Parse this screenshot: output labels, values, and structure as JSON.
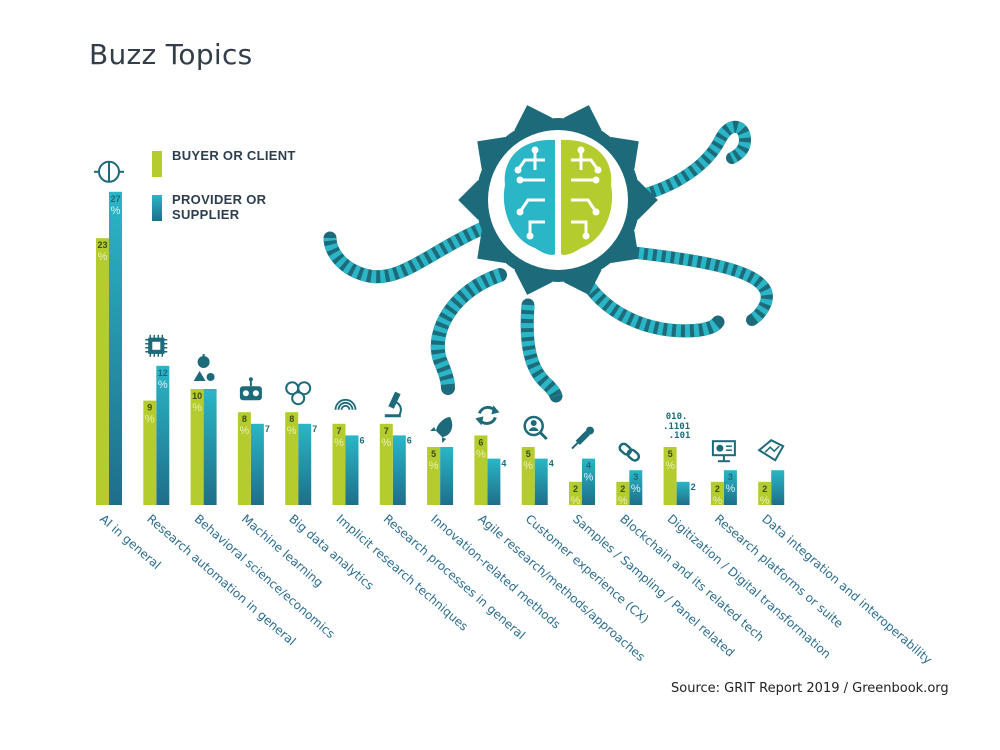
{
  "title": "Buzz Topics",
  "source": "Source: GRIT Report 2019 / Greenbook.org",
  "colors": {
    "buyer": "#b5cc2e",
    "provider": "#2ab6c6",
    "provider_dark": "#1f6e8a",
    "label": "#2a6c8f",
    "graphic": "#1d6b7a"
  },
  "legend": [
    {
      "label": "BUYER OR CLIENT",
      "series": "buyer"
    },
    {
      "label": "PROVIDER OR SUPPLIER",
      "series": "provider"
    }
  ],
  "chart_data": {
    "type": "bar",
    "title": "Buzz Topics",
    "ylim": [
      0,
      28
    ],
    "categories": [
      "AI in general",
      "Research automation in general",
      "Behavioral science/economics",
      "Machine learning",
      "Big data analytics",
      "Implicit research techniques",
      "Research processes in general",
      "Innovation-related methods",
      "Agile research/methods/approaches",
      "Customer experience (CX)",
      "Samples / Sampling / Panel related",
      "Blockchain and its related tech",
      "Digitization / Digital transformation",
      "Research platforms or suite",
      "Data integration and interoperability"
    ],
    "series": [
      {
        "name": "BUYER OR CLIENT",
        "values": [
          23,
          9,
          10,
          8,
          8,
          7,
          7,
          5,
          6,
          5,
          2,
          2,
          5,
          2,
          2
        ]
      },
      {
        "name": "PROVIDER OR SUPPLIER",
        "values": [
          27,
          12,
          10,
          7,
          7,
          6,
          6,
          5,
          4,
          4,
          4,
          3,
          2,
          3,
          3
        ]
      }
    ],
    "value_labels": [
      [
        "23",
        "27"
      ],
      [
        "9",
        "12"
      ],
      [
        "10",
        ""
      ],
      [
        "8",
        "7"
      ],
      [
        "8",
        "7"
      ],
      [
        "7",
        "6"
      ],
      [
        "7",
        "6"
      ],
      [
        "5",
        ""
      ],
      [
        "6",
        "4"
      ],
      [
        "5",
        "4"
      ],
      [
        "2",
        "4"
      ],
      [
        "2",
        "3"
      ],
      [
        "5",
        "2"
      ],
      [
        "2",
        "3"
      ],
      [
        "2",
        ""
      ]
    ],
    "icons": [
      "brain-circuit-icon",
      "chip-icon",
      "apple-shapes-icon",
      "robot-icon",
      "network-icon",
      "fingerprint-icon",
      "microscope-icon",
      "rocket-icon",
      "refresh-icon",
      "magnifier-person-icon",
      "dropper-icon",
      "chain-link-icon",
      "binary-code-icon",
      "presentation-board-icon",
      "data-map-icon"
    ],
    "binary_icon_text": [
      "010.",
      ".1101",
      ".101"
    ],
    "percent_sign": "%",
    "legend_position": "top-left",
    "grid": false
  }
}
